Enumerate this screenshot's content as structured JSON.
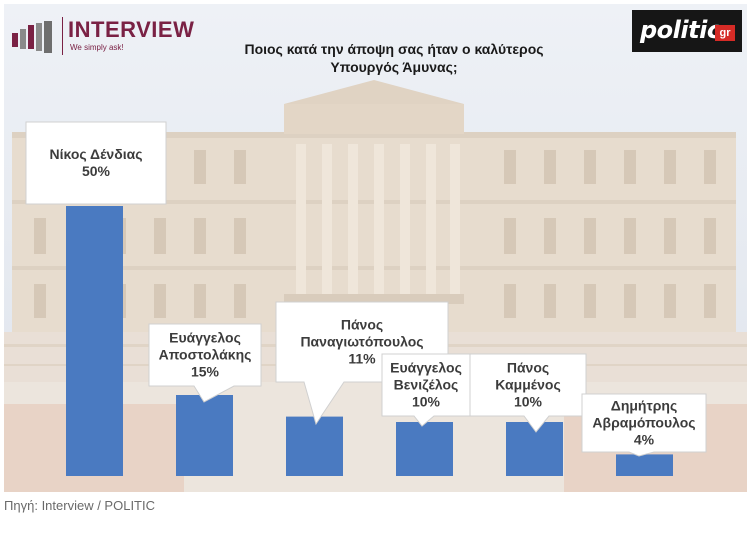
{
  "header": {
    "brand": "INTERVIEW",
    "tagline": "We simply ask!",
    "partner_logo": "politic",
    "partner_logo_suffix": "gr"
  },
  "chart_data": {
    "type": "bar",
    "title_lines": [
      "Ποιος κατά την άποψη σας ήταν ο καλύτερος",
      "Υπουργός Άμυνας;"
    ],
    "categories": [
      "Νίκος Δένδιας",
      "Ευάγγελος Αποστολάκης",
      "Πάνος Παναγιωτόπουλος",
      "Ευάγγελος Βενιζέλος",
      "Πάνος Καμμένος",
      "Δημήτρης Αβραμόπουλος"
    ],
    "label_lines": [
      [
        "Νίκος Δένδιας"
      ],
      [
        "Ευάγγελος",
        "Αποστολάκης"
      ],
      [
        "Πάνος",
        "Παναγιωτόπουλος"
      ],
      [
        "Ευάγγελος",
        "Βενιζέλος"
      ],
      [
        "Πάνος",
        "Καμμένος"
      ],
      [
        "Δημήτρης",
        "Αβραμόπουλος"
      ]
    ],
    "values": [
      50,
      15,
      11,
      10,
      10,
      4
    ],
    "value_labels": [
      "50%",
      "15%",
      "11%",
      "10%",
      "10%",
      "4%"
    ],
    "unit": "%",
    "bar_color": "#4a7ac1",
    "ylim": [
      0,
      52
    ],
    "grid": false,
    "legend": "none"
  },
  "footer": {
    "source": "Πηγή: Interview / POLITIC"
  }
}
